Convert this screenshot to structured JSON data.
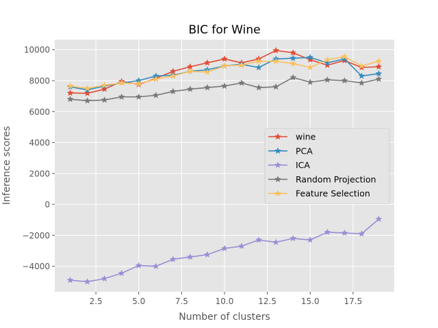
{
  "chart_data": {
    "type": "line",
    "title": "BIC for Wine",
    "xlabel": "Number of clusters",
    "ylabel": "Inference scores",
    "xlim": [
      0.1,
      19.9
    ],
    "ylim": [
      -5650,
      10650
    ],
    "xticks": [
      2.5,
      5.0,
      7.5,
      10.0,
      12.5,
      15.0,
      17.5
    ],
    "xtick_labels": [
      "2.5",
      "5.0",
      "7.5",
      "10.0",
      "12.5",
      "15.0",
      "17.5"
    ],
    "yticks": [
      -4000,
      -2000,
      0,
      2000,
      4000,
      6000,
      8000,
      10000
    ],
    "ytick_labels": [
      "−4000",
      "−2000",
      "0",
      "2000",
      "4000",
      "6000",
      "8000",
      "10000"
    ],
    "grid": true,
    "legend_position": "center-right",
    "marker": "star",
    "x": [
      1,
      2,
      3,
      4,
      5,
      6,
      7,
      8,
      9,
      10,
      11,
      12,
      13,
      14,
      15,
      16,
      17,
      18,
      19
    ],
    "series": [
      {
        "name": "wine",
        "color": "#E24A33",
        "values": [
          7200,
          7180,
          7450,
          7950,
          7750,
          8150,
          8600,
          8900,
          9150,
          9400,
          9150,
          9400,
          9950,
          9800,
          9350,
          9000,
          9300,
          8850,
          8900
        ]
      },
      {
        "name": "PCA",
        "color": "#348ABD",
        "values": [
          7600,
          7400,
          7650,
          7850,
          8000,
          8300,
          8350,
          8600,
          8700,
          8950,
          9050,
          8850,
          9400,
          9450,
          9500,
          9150,
          9400,
          8300,
          8450
        ]
      },
      {
        "name": "ICA",
        "color": "#988ED5",
        "values": [
          -4900,
          -5000,
          -4800,
          -4450,
          -3950,
          -4000,
          -3550,
          -3400,
          -3250,
          -2850,
          -2700,
          -2300,
          -2450,
          -2200,
          -2300,
          -1800,
          -1850,
          -1900,
          -950
        ]
      },
      {
        "name": "Random Projection",
        "color": "#777777",
        "values": [
          6800,
          6700,
          6750,
          6950,
          6950,
          7050,
          7300,
          7450,
          7550,
          7650,
          7850,
          7550,
          7600,
          8200,
          7900,
          8050,
          8000,
          7850,
          8100
        ]
      },
      {
        "name": "Feature Selection",
        "color": "#FBC15E",
        "values": [
          7650,
          7500,
          7700,
          7850,
          7800,
          8100,
          8300,
          8600,
          8550,
          8950,
          9000,
          9250,
          9250,
          9100,
          8850,
          9350,
          9550,
          8950,
          9250
        ]
      }
    ]
  }
}
